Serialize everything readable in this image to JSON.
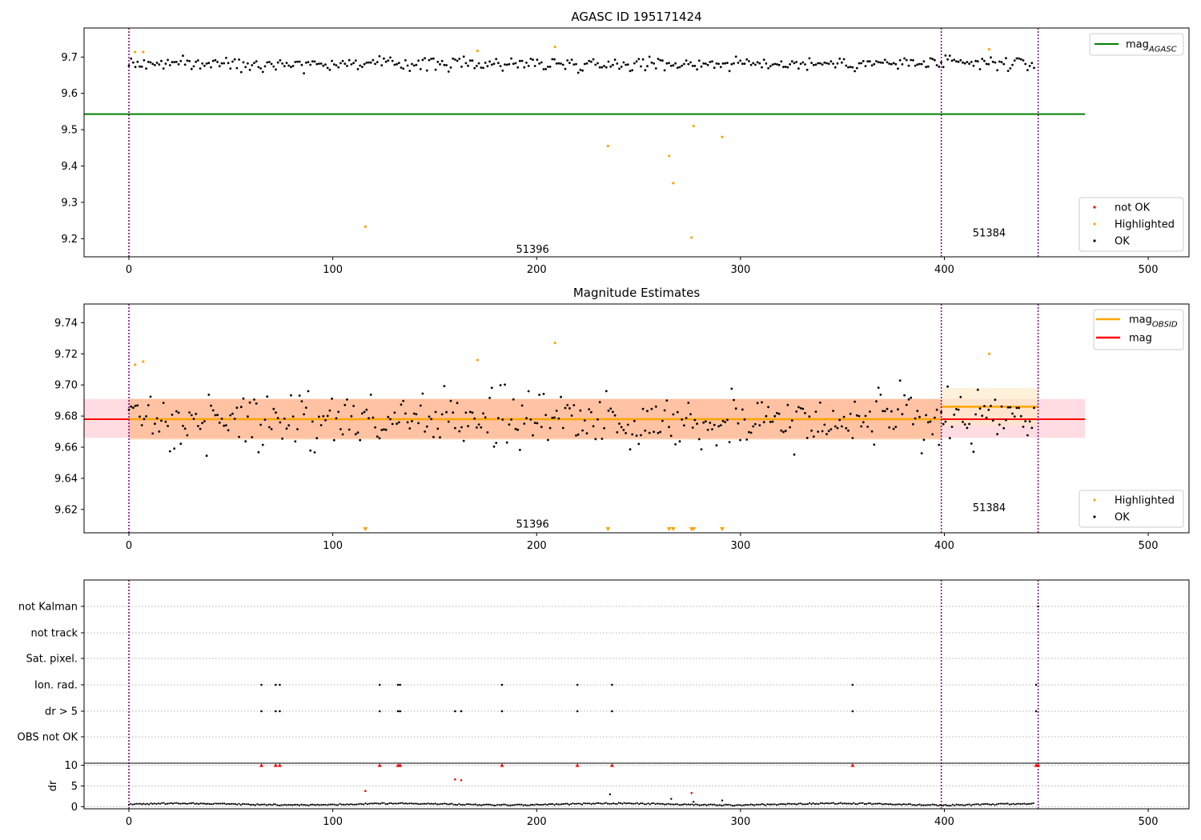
{
  "figure": {
    "colors": {
      "ok": "#000000",
      "highlighted": "#ffa500",
      "not_ok": "#ff0000",
      "agasc_line": "#008000",
      "mag_line": "#ff0000",
      "obsid_line": "#ffa500",
      "obs_divider": "#800080",
      "grid": "#b0b0b0"
    }
  },
  "chart_data": [
    {
      "type": "scatter",
      "title": "AGASC ID 195171424",
      "xlim": [
        -22,
        520
      ],
      "ylim": [
        9.15,
        9.78
      ],
      "xticks": [
        0,
        100,
        200,
        300,
        400,
        500
      ],
      "yticks": [
        9.2,
        9.3,
        9.4,
        9.5,
        9.6,
        9.7
      ],
      "obs_boundaries": [
        0,
        398.5,
        446
      ],
      "obs_labels": [
        {
          "text": "51396",
          "x": 198,
          "y": 9.17
        },
        {
          "text": "51384",
          "x": 422,
          "y": 9.215
        }
      ],
      "mag_agasc": {
        "value": 9.543,
        "x_range": [
          -22,
          469
        ]
      },
      "ok_series": {
        "x_range": [
          0,
          444
        ],
        "mean": 9.682,
        "spread": 0.012,
        "n": 420
      },
      "highlighted_points": [
        [
          3,
          9.714
        ],
        [
          7,
          9.714
        ],
        [
          116,
          9.233
        ],
        [
          171,
          9.717
        ],
        [
          209,
          9.728
        ],
        [
          235,
          9.455
        ],
        [
          265,
          9.428
        ],
        [
          267,
          9.353
        ],
        [
          276,
          9.203
        ],
        [
          277,
          9.51
        ],
        [
          291,
          9.48
        ],
        [
          422,
          9.721
        ]
      ],
      "legend": {
        "lines": [
          {
            "label": "mag",
            "subscript": "AGASC",
            "color": "#008000"
          }
        ],
        "points": [
          {
            "label": "not OK",
            "color": "#ff0000"
          },
          {
            "label": "Highlighted",
            "color": "#ffa500"
          },
          {
            "label": "OK",
            "color": "#000000"
          }
        ]
      }
    },
    {
      "type": "scatter",
      "title": "Magnitude Estimates",
      "xlim": [
        -22,
        520
      ],
      "ylim": [
        9.605,
        9.752
      ],
      "xticks": [
        0,
        100,
        200,
        300,
        400,
        500
      ],
      "yticks": [
        9.62,
        9.64,
        9.66,
        9.68,
        9.7,
        9.72,
        9.74
      ],
      "obs_boundaries": [
        0,
        398.5,
        446
      ],
      "obs_labels": [
        {
          "text": "51396",
          "x": 198,
          "y": 9.6105
        },
        {
          "text": "51384",
          "x": 422,
          "y": 9.621
        }
      ],
      "mag": {
        "value": 9.678,
        "x_range": [
          -22,
          469
        ],
        "band": [
          9.666,
          9.691
        ],
        "band_color": "#ffc0cb"
      },
      "mag_obsid": [
        {
          "obsid": "51396",
          "value": 9.678,
          "x_range": [
            0,
            398.5
          ],
          "band": [
            9.665,
            9.691
          ],
          "band_color": "#ffb07a"
        },
        {
          "obsid": "51384",
          "value": 9.686,
          "x_range": [
            398.5,
            446
          ],
          "band": [
            9.674,
            9.698
          ],
          "band_color": "#fde8c0"
        }
      ],
      "ok_series": {
        "x_range": [
          0,
          444
        ],
        "mean": 9.678,
        "spread": 0.012,
        "n": 420
      },
      "highlighted_points": [
        [
          3,
          9.713
        ],
        [
          7,
          9.715
        ],
        [
          171,
          9.716
        ],
        [
          209,
          9.727
        ],
        [
          422,
          9.72
        ]
      ],
      "highlighted_offscale": [
        116,
        235,
        265,
        267,
        276,
        277,
        291
      ],
      "legend": {
        "lines": [
          {
            "label": "mag",
            "subscript": "OBSID",
            "color": "#ffa500"
          },
          {
            "label": "mag",
            "subscript": "",
            "color": "#ff0000"
          }
        ],
        "points": [
          {
            "label": "Highlighted",
            "color": "#ffa500"
          },
          {
            "label": "OK",
            "color": "#000000"
          }
        ]
      }
    },
    {
      "type": "scatter",
      "title": "",
      "xlim": [
        -22,
        520
      ],
      "xticks": [
        0,
        100,
        200,
        300,
        400,
        500
      ],
      "obs_boundaries": [
        0,
        398.5,
        446
      ],
      "flag_rows": [
        "not Kalman",
        "not track",
        "Sat. pixel.",
        "Ion. rad.",
        "dr > 5",
        "OBS not OK"
      ],
      "flags": {
        "not Kalman": [
          446
        ],
        "not track": [],
        "Sat. pixel.": [],
        "Ion. rad.": [
          65,
          72,
          74,
          123,
          132,
          133,
          183,
          220,
          237,
          355,
          445
        ],
        "dr > 5": [
          65,
          72,
          74,
          123,
          132,
          133,
          160,
          163,
          183,
          220,
          237,
          355,
          445
        ],
        "OBS not OK": []
      },
      "dr": {
        "ylabel": "dr",
        "ylim": [
          -0.5,
          10.5
        ],
        "yticks": [
          0,
          5,
          10
        ],
        "baseline": 0.6,
        "clipped_at_10": [
          65,
          72,
          74,
          123,
          132,
          133,
          183,
          220,
          237,
          355,
          445,
          446
        ],
        "high_points": [
          [
            116,
            3.8
          ],
          [
            160,
            6.6
          ],
          [
            163,
            6.4
          ],
          [
            276,
            3.3
          ]
        ],
        "mid_points": [
          [
            236,
            3.0
          ],
          [
            266,
            1.9
          ],
          [
            277,
            1.2
          ],
          [
            291,
            1.5
          ]
        ]
      }
    }
  ]
}
